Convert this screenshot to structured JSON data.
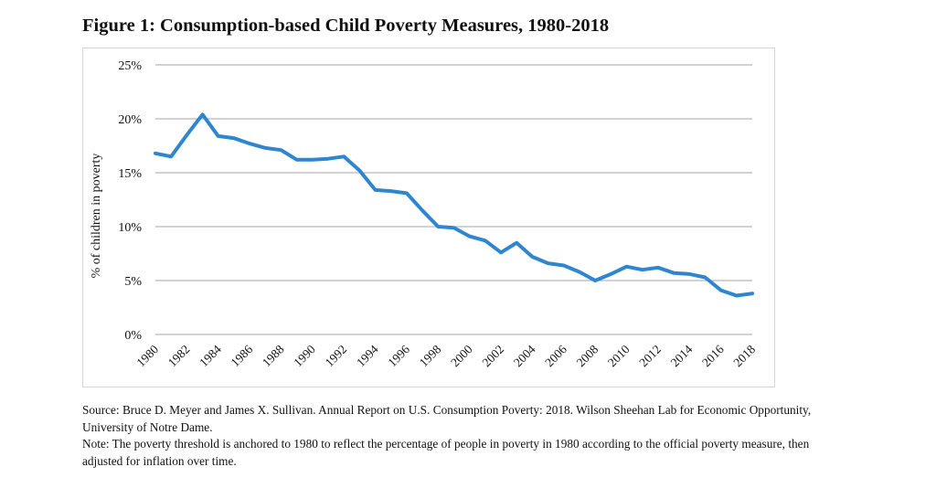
{
  "figure": {
    "title": "Figure 1: Consumption-based Child Poverty Measures, 1980-2018"
  },
  "chart_data": {
    "type": "line",
    "title": "Figure 1: Consumption-based Child Poverty Measures, 1980-2018",
    "xlabel": "",
    "ylabel": "% of children in poverty",
    "ylim": [
      0,
      25
    ],
    "yticks": [
      0,
      5,
      10,
      15,
      20,
      25
    ],
    "ytick_labels": [
      "0%",
      "5%",
      "10%",
      "15%",
      "20%",
      "25%"
    ],
    "xtick_labels": [
      "1980",
      "1982",
      "1984",
      "1986",
      "1988",
      "1990",
      "1992",
      "1994",
      "1996",
      "1998",
      "2000",
      "2002",
      "2004",
      "2006",
      "2008",
      "2010",
      "2012",
      "2014",
      "2016",
      "2018"
    ],
    "grid": true,
    "legend": "none",
    "color": "#2f86cf",
    "x": [
      1980,
      1981,
      1982,
      1983,
      1984,
      1985,
      1986,
      1987,
      1988,
      1989,
      1990,
      1991,
      1992,
      1993,
      1994,
      1995,
      1996,
      1997,
      1998,
      1999,
      2000,
      2001,
      2002,
      2003,
      2004,
      2005,
      2006,
      2007,
      2008,
      2009,
      2010,
      2011,
      2012,
      2013,
      2014,
      2015,
      2016,
      2017,
      2018
    ],
    "series": [
      {
        "values": [
          16.8,
          16.5,
          18.5,
          20.4,
          18.4,
          18.2,
          17.7,
          17.3,
          17.1,
          16.2,
          16.2,
          16.3,
          16.5,
          15.2,
          13.4,
          13.3,
          13.1,
          11.5,
          10.0,
          9.9,
          9.1,
          8.7,
          7.6,
          8.5,
          7.2,
          6.6,
          6.4,
          5.8,
          5.0,
          5.6,
          6.3,
          6.0,
          6.2,
          5.7,
          5.6,
          5.3,
          4.1,
          3.6,
          3.8
        ]
      }
    ]
  },
  "notes": {
    "source": "Source: Bruce D. Meyer and James X. Sullivan. Annual Report on U.S. Consumption Poverty: 2018. Wilson Sheehan Lab for Economic Opportunity, University of Notre Dame.",
    "note": "Note: The poverty threshold is anchored to 1980 to reflect the percentage of people in poverty in 1980 according to the official poverty measure, then adjusted for inflation over time."
  }
}
